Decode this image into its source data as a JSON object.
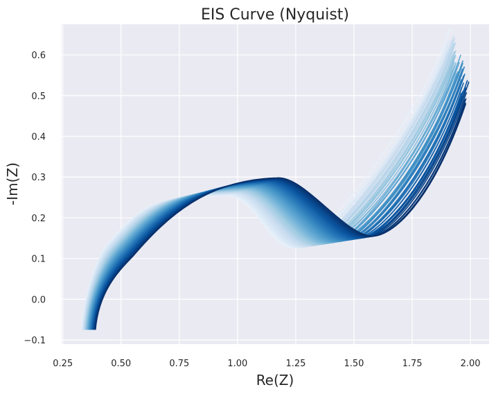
{
  "chart_data": {
    "type": "line",
    "title": "EIS Curve (Nyquist)",
    "xlabel": "Re(Z)",
    "ylabel": "-Im(Z)",
    "xlim": [
      0.245,
      2.08
    ],
    "ylim": [
      -0.11,
      0.675
    ],
    "xticks": [
      "0.25",
      "0.50",
      "0.75",
      "1.00",
      "1.25",
      "1.50",
      "1.75",
      "2.00"
    ],
    "yticks": [
      "−0.1",
      "0.0",
      "0.1",
      "0.2",
      "0.3",
      "0.4",
      "0.5",
      "0.6"
    ],
    "grid": true,
    "background": "#eaeaf2",
    "colormap": "Blues",
    "series_count": 60,
    "family": {
      "first_curve": {
        "start": [
          0.33,
          -0.075
        ],
        "knee": [
          0.45,
          0.14
        ],
        "peak": [
          0.95,
          0.255
        ],
        "valley": [
          1.25,
          0.125
        ],
        "end": [
          1.9,
          0.64
        ]
      },
      "last_curve": {
        "start": [
          0.39,
          -0.075
        ],
        "knee": [
          0.55,
          0.105
        ],
        "peak": [
          1.17,
          0.298
        ],
        "valley": [
          1.58,
          0.155
        ],
        "end": [
          1.99,
          0.5
        ]
      }
    }
  }
}
